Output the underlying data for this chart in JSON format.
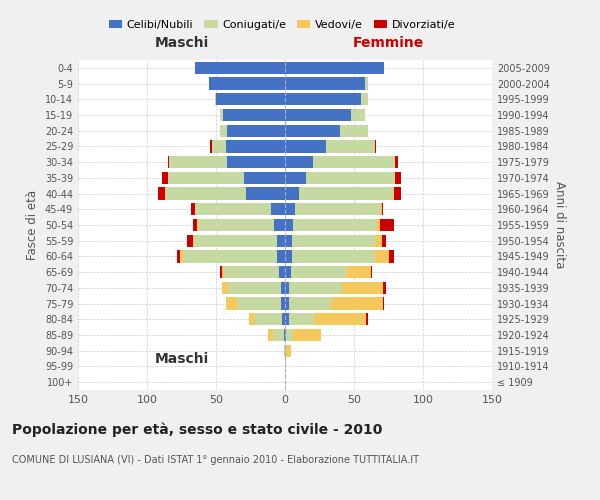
{
  "age_groups": [
    "100+",
    "95-99",
    "90-94",
    "85-89",
    "80-84",
    "75-79",
    "70-74",
    "65-69",
    "60-64",
    "55-59",
    "50-54",
    "45-49",
    "40-44",
    "35-39",
    "30-34",
    "25-29",
    "20-24",
    "15-19",
    "10-14",
    "5-9",
    "0-4"
  ],
  "birth_years": [
    "≤ 1909",
    "1910-1914",
    "1915-1919",
    "1920-1924",
    "1925-1929",
    "1930-1934",
    "1935-1939",
    "1940-1944",
    "1945-1949",
    "1950-1954",
    "1955-1959",
    "1960-1964",
    "1965-1969",
    "1970-1974",
    "1975-1979",
    "1980-1984",
    "1985-1989",
    "1990-1994",
    "1995-1999",
    "2000-2004",
    "2005-2009"
  ],
  "males": {
    "celibi": [
      0,
      0,
      0,
      1,
      2,
      3,
      3,
      4,
      6,
      6,
      8,
      10,
      28,
      30,
      42,
      43,
      42,
      45,
      50,
      55,
      65
    ],
    "coniugati": [
      0,
      0,
      1,
      8,
      20,
      32,
      38,
      40,
      68,
      60,
      55,
      55,
      58,
      55,
      42,
      10,
      5,
      2,
      1,
      0,
      0
    ],
    "vedovi": [
      0,
      0,
      0,
      3,
      4,
      8,
      5,
      2,
      2,
      1,
      1,
      0,
      1,
      0,
      0,
      0,
      0,
      0,
      0,
      0,
      0
    ],
    "divorziati": [
      0,
      0,
      0,
      0,
      0,
      0,
      0,
      1,
      2,
      4,
      3,
      3,
      5,
      4,
      1,
      1,
      0,
      0,
      0,
      0,
      0
    ]
  },
  "females": {
    "nubili": [
      0,
      0,
      0,
      1,
      3,
      3,
      3,
      4,
      5,
      5,
      6,
      7,
      10,
      15,
      20,
      30,
      40,
      48,
      55,
      58,
      72
    ],
    "coniugate": [
      0,
      0,
      1,
      5,
      18,
      30,
      38,
      40,
      60,
      60,
      60,
      62,
      68,
      65,
      60,
      35,
      20,
      10,
      5,
      2,
      0
    ],
    "vedove": [
      0,
      1,
      3,
      20,
      38,
      38,
      30,
      18,
      10,
      5,
      3,
      1,
      1,
      0,
      0,
      0,
      0,
      0,
      0,
      0,
      0
    ],
    "divorziate": [
      0,
      0,
      0,
      0,
      1,
      1,
      2,
      1,
      4,
      3,
      10,
      1,
      5,
      4,
      2,
      1,
      0,
      0,
      0,
      0,
      0
    ]
  },
  "color_celibi": "#4472C4",
  "color_coniugati": "#C5D9A0",
  "color_vedovi": "#F5C85C",
  "color_divorziati": "#CC0000",
  "xlim": 150,
  "title": "Popolazione per età, sesso e stato civile - 2010",
  "subtitle": "COMUNE DI LUSIANA (VI) - Dati ISTAT 1° gennaio 2010 - Elaborazione TUTTITALIA.IT",
  "ylabel_left": "Fasce di età",
  "ylabel_right": "Anni di nascita",
  "xlabel_left": "Maschi",
  "xlabel_right": "Femmine",
  "bg_color": "#f0f0f0",
  "plot_bg": "#ffffff"
}
